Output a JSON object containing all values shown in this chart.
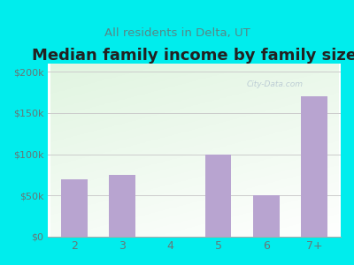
{
  "title": "Median family income by family size",
  "subtitle": "All residents in Delta, UT",
  "categories": [
    "2",
    "3",
    "4",
    "5",
    "6",
    "7+"
  ],
  "values": [
    70000,
    75000,
    0,
    100000,
    50000,
    170000
  ],
  "bar_color": "#b8a4d0",
  "outer_bg": "#00eded",
  "title_color": "#222222",
  "subtitle_color": "#558888",
  "tick_color": "#667777",
  "grid_color": "#cccccc",
  "ylim": [
    0,
    210000
  ],
  "yticks": [
    0,
    50000,
    100000,
    150000,
    200000
  ],
  "ytick_labels": [
    "$0",
    "$50k",
    "$100k",
    "$150k",
    "$200k"
  ],
  "title_fontsize": 13,
  "subtitle_fontsize": 9.5,
  "watermark": "City-Data.com"
}
